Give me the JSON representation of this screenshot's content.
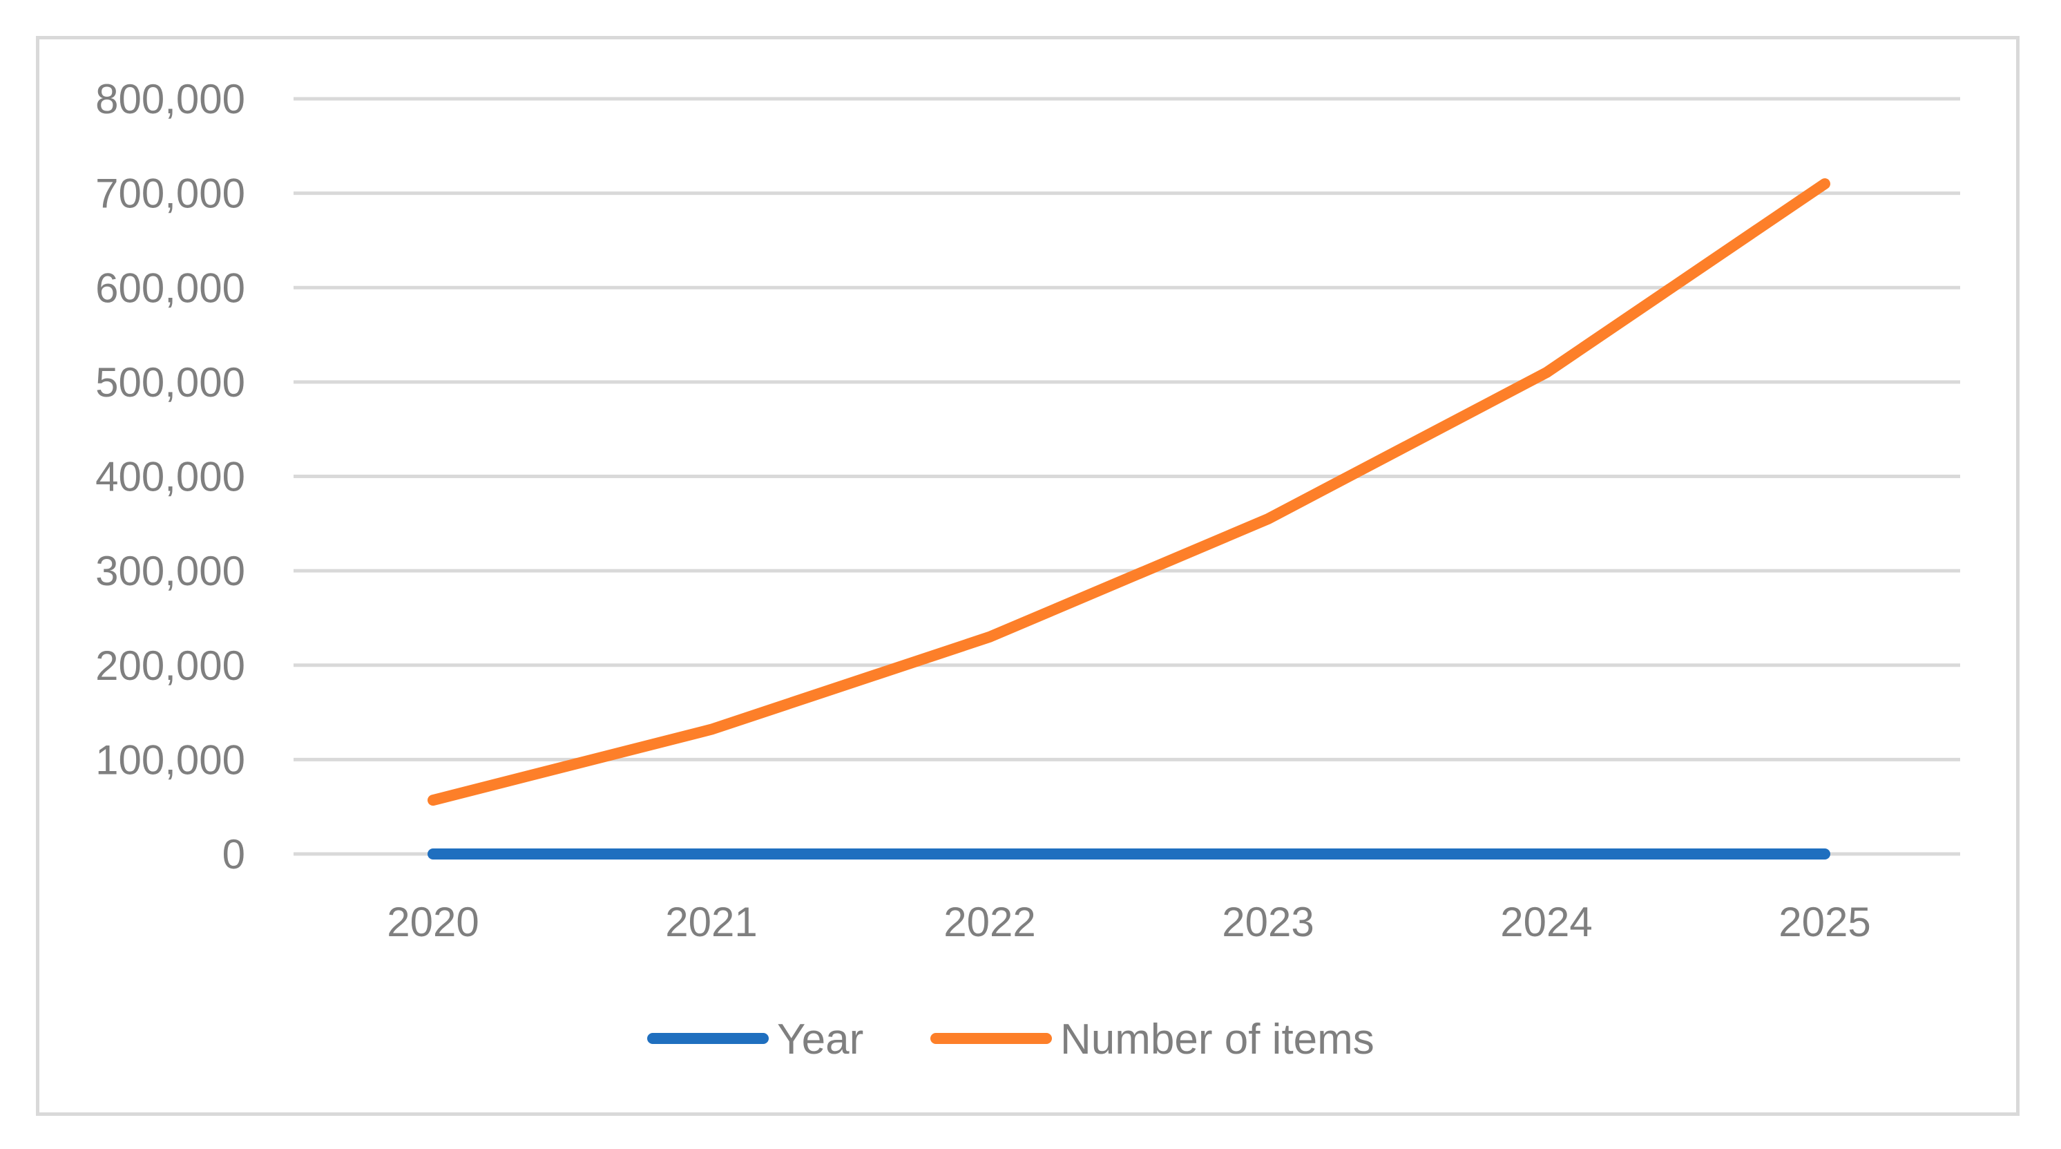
{
  "chart_data": {
    "type": "line",
    "title": "",
    "xlabel": "",
    "ylabel": "",
    "categories": [
      "2020",
      "2021",
      "2022",
      "2023",
      "2024",
      "2025"
    ],
    "series": [
      {
        "name": "Year",
        "color": "#1f6fbf",
        "values": [
          2020,
          2021,
          2022,
          2023,
          2024,
          2025
        ]
      },
      {
        "name": "Number of items",
        "color": "#fd7f29",
        "values": [
          57000,
          132000,
          230000,
          355000,
          510000,
          710000
        ]
      }
    ],
    "ylim": [
      0,
      800000
    ],
    "yticks": [
      "0",
      "100,000",
      "200,000",
      "300,000",
      "400,000",
      "500,000",
      "600,000",
      "700,000",
      "800,000"
    ],
    "grid": true,
    "legend": "bottom"
  }
}
